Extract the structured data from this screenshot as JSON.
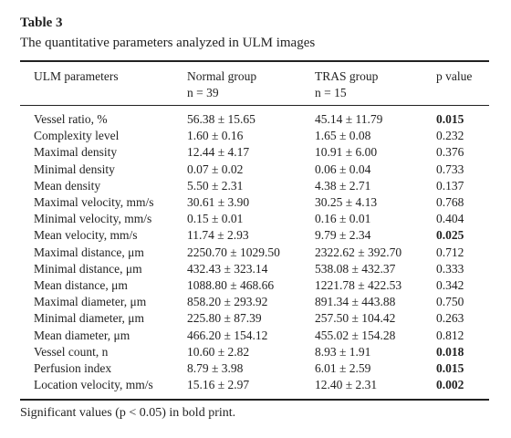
{
  "table": {
    "label": "Table 3",
    "caption": "The quantitative parameters analyzed in ULM images",
    "header": {
      "parameter": "ULM parameters",
      "normal": "Normal group",
      "normal_n": "n = 39",
      "tras": "TRAS group",
      "tras_n": "n = 15",
      "p": "p value"
    },
    "rows": [
      {
        "parameter": "Vessel ratio, %",
        "normal": "56.38 ± 15.65",
        "tras": "45.14 ± 11.79",
        "p": "0.015",
        "p_bold": true
      },
      {
        "parameter": "Complexity level",
        "normal": "1.60 ± 0.16",
        "tras": "1.65 ± 0.08",
        "p": "0.232",
        "p_bold": false
      },
      {
        "parameter": "Maximal density",
        "normal": "12.44 ± 4.17",
        "tras": "10.91 ± 6.00",
        "p": "0.376",
        "p_bold": false
      },
      {
        "parameter": "Minimal density",
        "normal": "0.07 ± 0.02",
        "tras": "0.06 ± 0.04",
        "p": "0.733",
        "p_bold": false
      },
      {
        "parameter": "Mean density",
        "normal": "5.50 ± 2.31",
        "tras": "4.38 ± 2.71",
        "p": "0.137",
        "p_bold": false
      },
      {
        "parameter": "Maximal velocity, mm/s",
        "normal": "30.61 ± 3.90",
        "tras": "30.25 ± 4.13",
        "p": "0.768",
        "p_bold": false
      },
      {
        "parameter": "Minimal velocity, mm/s",
        "normal": "0.15 ± 0.01",
        "tras": "0.16 ± 0.01",
        "p": "0.404",
        "p_bold": false
      },
      {
        "parameter": "Mean velocity, mm/s",
        "normal": "11.74 ± 2.93",
        "tras": "9.79 ± 2.34",
        "p": "0.025",
        "p_bold": true
      },
      {
        "parameter": "Maximal distance, μm",
        "normal": "2250.70 ± 1029.50",
        "tras": "2322.62 ± 392.70",
        "p": "0.712",
        "p_bold": false
      },
      {
        "parameter": "Minimal distance, μm",
        "normal": "432.43 ± 323.14",
        "tras": "538.08 ± 432.37",
        "p": "0.333",
        "p_bold": false
      },
      {
        "parameter": "Mean distance, μm",
        "normal": "1088.80 ± 468.66",
        "tras": "1221.78 ± 422.53",
        "p": "0.342",
        "p_bold": false
      },
      {
        "parameter": "Maximal diameter, μm",
        "normal": "858.20 ± 293.92",
        "tras": "891.34 ± 443.88",
        "p": "0.750",
        "p_bold": false
      },
      {
        "parameter": "Minimal diameter, μm",
        "normal": "225.80 ± 87.39",
        "tras": "257.50 ± 104.42",
        "p": "0.263",
        "p_bold": false
      },
      {
        "parameter": "Mean diameter, μm",
        "normal": "466.20 ± 154.12",
        "tras": "455.02 ± 154.28",
        "p": "0.812",
        "p_bold": false
      },
      {
        "parameter": "Vessel count, n",
        "normal": "10.60 ± 2.82",
        "tras": "8.93 ± 1.91",
        "p": "0.018",
        "p_bold": true
      },
      {
        "parameter": "Perfusion index",
        "normal": "8.79 ± 3.98",
        "tras": "6.01 ± 2.59",
        "p": "0.015",
        "p_bold": true
      },
      {
        "parameter": "Location velocity, mm/s",
        "normal": "15.16 ± 2.97",
        "tras": "12.40 ± 2.31",
        "p": "0.002",
        "p_bold": true
      }
    ],
    "footnote": "Significant values (p < 0.05) in bold print."
  }
}
